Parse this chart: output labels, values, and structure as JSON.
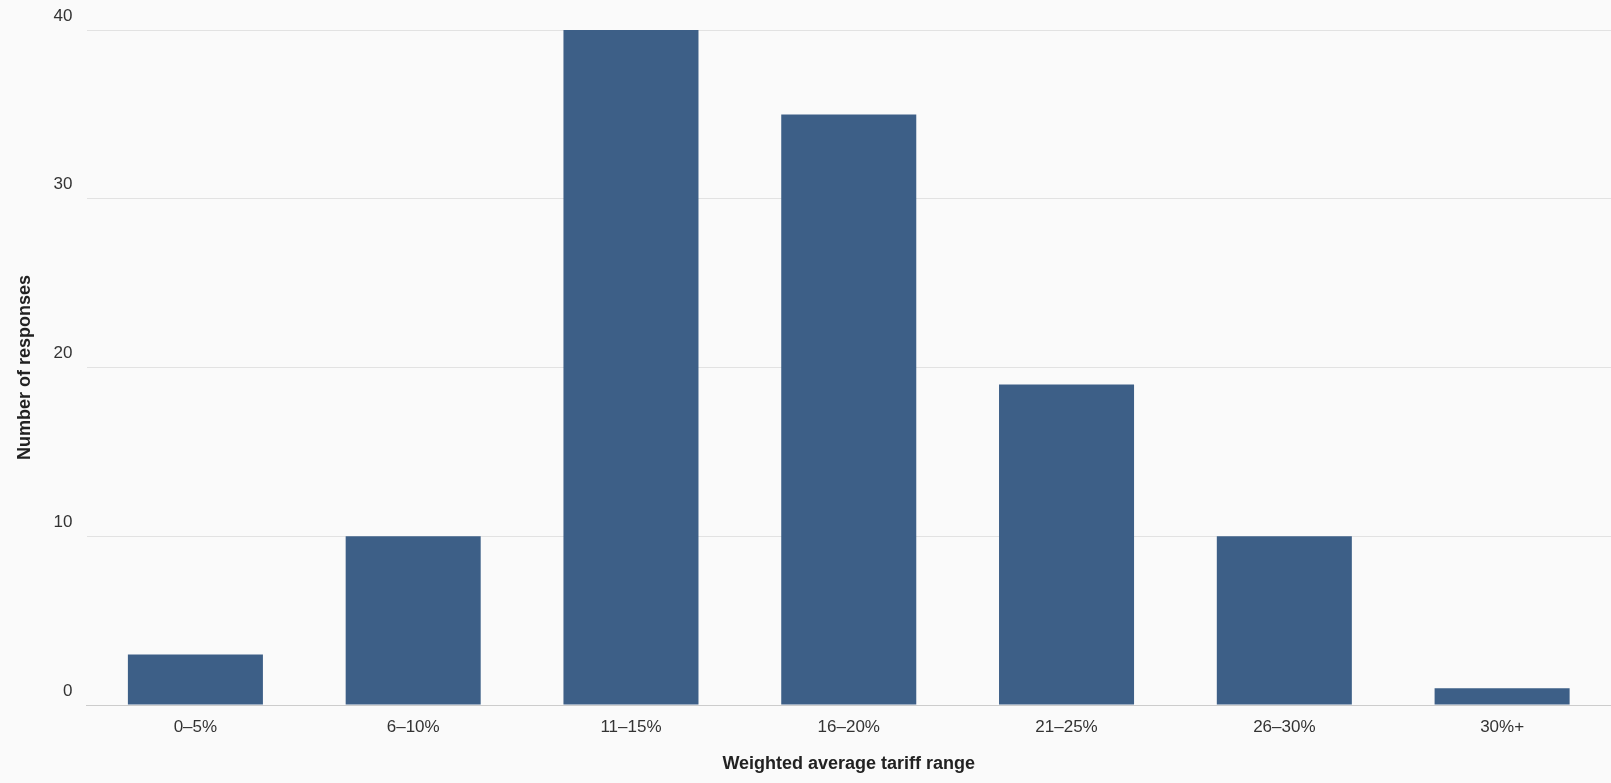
{
  "chart_data": {
    "type": "bar",
    "xlabel": "Weighted average tariff range",
    "ylabel": "Number of responses",
    "categories": [
      "0–5%",
      "6–10%",
      "11–15%",
      "16–20%",
      "21–25%",
      "26–30%",
      "30%+"
    ],
    "values": [
      3,
      10,
      40,
      35,
      19,
      10,
      1
    ],
    "color": "#3d5f87",
    "ylim": [
      0,
      40
    ],
    "yticks": [
      0,
      10,
      20,
      30,
      40
    ],
    "grid": "y",
    "legend": false
  }
}
